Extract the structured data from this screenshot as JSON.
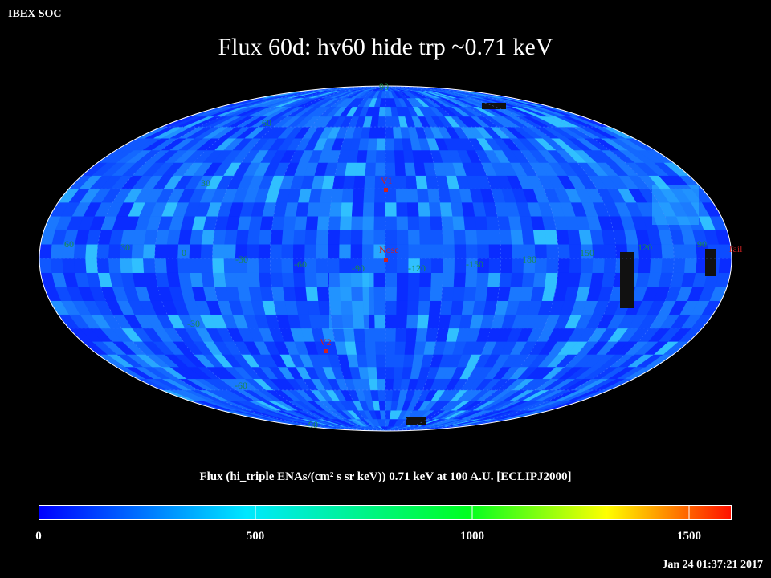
{
  "header": {
    "corner_label": "IBEX SOC",
    "title": "Flux   60d: hv60 hide trp ~0.71 keV"
  },
  "map": {
    "projection": "Mollweide",
    "latitude_labels": [
      "60",
      "30",
      "-30",
      "-60",
      "90",
      "-90"
    ],
    "longitude_labels": [
      "60",
      "30",
      "0",
      "-30",
      "-60",
      "-90",
      "-120",
      "-150",
      "180",
      "150",
      "120",
      "90"
    ],
    "markers": [
      {
        "label": "V1",
        "color": "#cc2222"
      },
      {
        "label": "Nose",
        "color": "#cc2222"
      },
      {
        "label": "V2",
        "color": "#cc2222"
      },
      {
        "label": "Tail",
        "color": "#cc2222"
      }
    ],
    "grid_label_color": "#1a8a4a"
  },
  "colorbar": {
    "title": "Flux (hi_triple ENAs/(cm² s sr keV))  0.71 keV at 100 A.U. [ECLIPJ2000]",
    "ticks": [
      "0",
      "500",
      "1000",
      "1500"
    ],
    "range": [
      0,
      1600
    ],
    "colors": [
      "#0000ff",
      "#00e0ff",
      "#00ff00",
      "#ffff00",
      "#ff2000"
    ]
  },
  "footer": {
    "timestamp": "Jan 24 01:37:21 2017"
  }
}
